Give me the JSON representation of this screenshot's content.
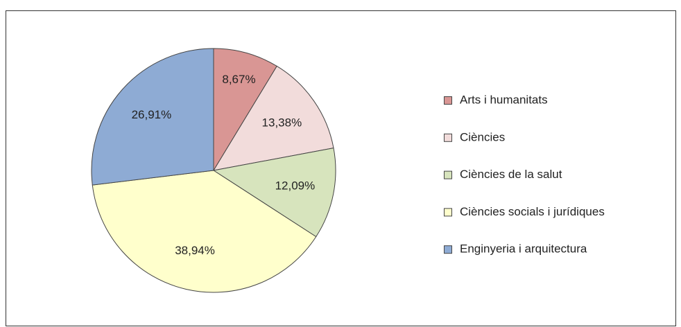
{
  "chart_data": {
    "type": "pie",
    "categories": [
      "Arts i humanitats",
      "Ciències",
      "Ciències de la salut",
      "Ciències socials i jurídiques",
      "Enginyeria i arquitectura"
    ],
    "values": [
      8.67,
      13.38,
      12.09,
      38.94,
      26.91
    ],
    "value_labels": [
      "8,67%",
      "13,38%",
      "12,09%",
      "38,94%",
      "26,91%"
    ],
    "colors": [
      "#d99694",
      "#f2dcdb",
      "#d7e4bd",
      "#ffffcc",
      "#8eabd4"
    ],
    "legend": "right"
  }
}
